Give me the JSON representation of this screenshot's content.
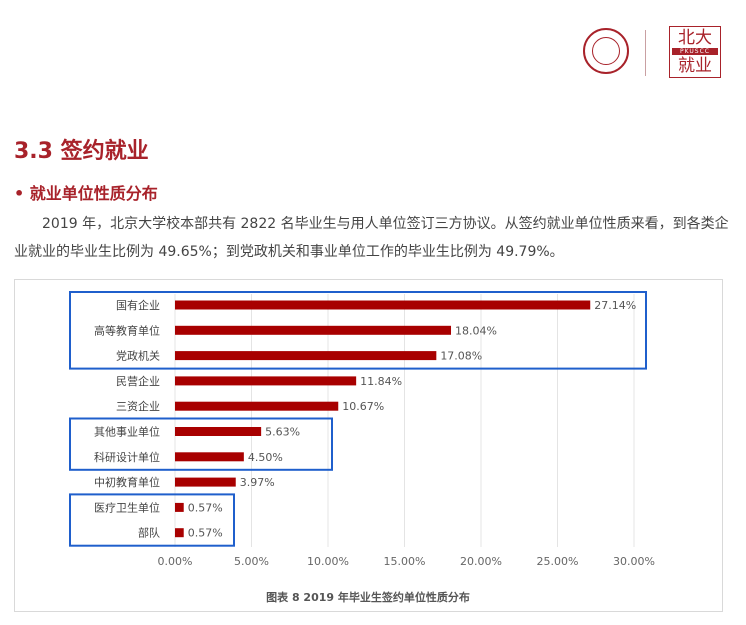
{
  "logo": {
    "seal_name": "peking-university-seal",
    "mark_top": "北大",
    "mark_middle": "PKUSCC",
    "mark_bottom": "就业"
  },
  "section_title": "3.3 签约就业",
  "subheading": "• 就业单位性质分布",
  "paragraph": "2019 年，北京大学校本部共有 2822 名毕业生与用人单位签订三方协议。从签约就业单位性质来看，到各类企业就业的毕业生比例为 49.65%；到党政机关和事业单位工作的毕业生比例为 49.79%。",
  "colors": {
    "bar": "#a80000",
    "accent": "#a8222a",
    "highlight": "#1f5fcc"
  },
  "chart_data": {
    "type": "bar",
    "orientation": "horizontal",
    "title": "图表 8  2019 年毕业生签约单位性质分布",
    "categories": [
      "国有企业",
      "高等教育单位",
      "党政机关",
      "民营企业",
      "三资企业",
      "其他事业单位",
      "科研设计单位",
      "中初教育单位",
      "医疗卫生单位",
      "部队"
    ],
    "values": [
      27.14,
      18.04,
      17.08,
      11.84,
      10.67,
      5.63,
      4.5,
      3.97,
      0.57,
      0.57
    ],
    "data_labels": [
      "27.14%",
      "18.04%",
      "17.08%",
      "11.84%",
      "10.67%",
      "5.63%",
      "4.50%",
      "3.97%",
      "0.57%",
      "0.57%"
    ],
    "x_ticks": [
      "0.00%",
      "5.00%",
      "10.00%",
      "15.00%",
      "20.00%",
      "25.00%",
      "30.00%"
    ],
    "xlim": [
      0,
      30
    ],
    "xlabel": "",
    "ylabel": "",
    "grid": true,
    "highlight_groups": [
      [
        "国有企业",
        "高等教育单位",
        "党政机关"
      ],
      [
        "其他事业单位",
        "科研设计单位"
      ],
      [
        "医疗卫生单位",
        "部队"
      ]
    ]
  }
}
